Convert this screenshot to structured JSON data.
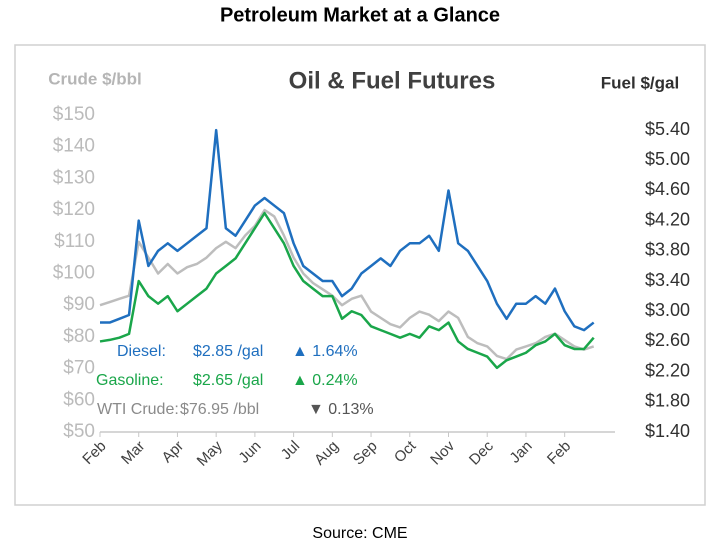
{
  "page_title": "Petroleum Market at a Glance",
  "source": "Source: CME",
  "chart_data": {
    "type": "line",
    "title": "Oil & Fuel Futures",
    "ylabel": "Crude $/bbl",
    "y2label": "Fuel $/gal",
    "x": [
      0,
      0.25,
      0.5,
      0.75,
      1,
      1.25,
      1.5,
      1.75,
      2,
      2.25,
      2.5,
      2.75,
      3,
      3.25,
      3.5,
      3.75,
      4,
      4.25,
      4.5,
      4.75,
      5,
      5.25,
      5.5,
      5.75,
      6,
      6.25,
      6.5,
      6.75,
      7,
      7.25,
      7.5,
      7.75,
      8,
      8.25,
      8.5,
      8.75,
      9,
      9.25,
      9.5,
      9.75,
      10,
      10.25,
      10.5,
      10.75,
      11,
      11.25,
      11.5,
      11.75,
      12,
      12.25,
      12.5,
      12.75
    ],
    "xlim": [
      0,
      13.3
    ],
    "xticks": [
      {
        "value": 0,
        "label": "Feb"
      },
      {
        "value": 1,
        "label": "Mar"
      },
      {
        "value": 2,
        "label": "Apr"
      },
      {
        "value": 3,
        "label": "May"
      },
      {
        "value": 4,
        "label": "Jun"
      },
      {
        "value": 5,
        "label": "Jul"
      },
      {
        "value": 6,
        "label": "Aug"
      },
      {
        "value": 7,
        "label": "Sep"
      },
      {
        "value": 8,
        "label": "Oct"
      },
      {
        "value": 9,
        "label": "Nov"
      },
      {
        "value": 10,
        "label": "Dec"
      },
      {
        "value": 11,
        "label": "Jan"
      },
      {
        "value": 12,
        "label": "Feb"
      }
    ],
    "ylim": [
      50,
      150
    ],
    "yticks": [
      {
        "value": 50,
        "label": "$50"
      },
      {
        "value": 60,
        "label": "$60"
      },
      {
        "value": 70,
        "label": "$70"
      },
      {
        "value": 80,
        "label": "$80"
      },
      {
        "value": 90,
        "label": "$90"
      },
      {
        "value": 100,
        "label": "$100"
      },
      {
        "value": 110,
        "label": "$110"
      },
      {
        "value": 120,
        "label": "$120"
      },
      {
        "value": 130,
        "label": "$130"
      },
      {
        "value": 140,
        "label": "$140"
      },
      {
        "value": 150,
        "label": "$150"
      }
    ],
    "y2lim": [
      1.4,
      5.6
    ],
    "y2ticks": [
      {
        "value": 1.4,
        "label": "$1.40"
      },
      {
        "value": 1.8,
        "label": "$1.80"
      },
      {
        "value": 2.2,
        "label": "$2.20"
      },
      {
        "value": 2.6,
        "label": "$2.60"
      },
      {
        "value": 3.0,
        "label": "$3.00"
      },
      {
        "value": 3.4,
        "label": "$3.40"
      },
      {
        "value": 3.8,
        "label": "$3.80"
      },
      {
        "value": 4.2,
        "label": "$4.20"
      },
      {
        "value": 4.6,
        "label": "$4.60"
      },
      {
        "value": 5.0,
        "label": "$5.00"
      },
      {
        "value": 5.4,
        "label": "$5.40"
      }
    ],
    "series": [
      {
        "name": "WTI Crude",
        "color": "#bdbdbd",
        "axis": "y",
        "values": [
          90,
          91,
          92,
          93,
          110,
          105,
          100,
          103,
          100,
          102,
          103,
          105,
          108,
          110,
          108,
          112,
          115,
          120,
          118,
          112,
          105,
          100,
          97,
          95,
          93,
          90,
          92,
          93,
          88,
          86,
          84,
          83,
          86,
          88,
          87,
          85,
          88,
          86,
          80,
          78,
          77,
          74,
          73,
          76,
          77,
          78,
          80,
          81,
          79,
          77,
          76,
          77
        ]
      },
      {
        "name": "Gasoline",
        "color": "#1aa64a",
        "axis": "y2",
        "values": [
          2.6,
          2.62,
          2.65,
          2.7,
          3.4,
          3.2,
          3.1,
          3.2,
          3.0,
          3.1,
          3.2,
          3.3,
          3.5,
          3.6,
          3.7,
          3.9,
          4.1,
          4.3,
          4.1,
          3.9,
          3.6,
          3.4,
          3.3,
          3.2,
          3.2,
          2.9,
          3.0,
          2.95,
          2.8,
          2.75,
          2.7,
          2.65,
          2.7,
          2.65,
          2.8,
          2.75,
          2.85,
          2.6,
          2.5,
          2.45,
          2.4,
          2.25,
          2.35,
          2.4,
          2.45,
          2.55,
          2.6,
          2.7,
          2.55,
          2.5,
          2.5,
          2.65
        ]
      },
      {
        "name": "Diesel",
        "color": "#1f6fbf",
        "axis": "y2",
        "values": [
          2.85,
          2.85,
          2.9,
          2.95,
          4.2,
          3.6,
          3.8,
          3.9,
          3.8,
          3.9,
          4.0,
          4.1,
          5.4,
          4.1,
          4.0,
          4.2,
          4.4,
          4.5,
          4.4,
          4.3,
          3.9,
          3.6,
          3.5,
          3.4,
          3.4,
          3.2,
          3.3,
          3.5,
          3.6,
          3.7,
          3.6,
          3.8,
          3.9,
          3.9,
          4.0,
          3.8,
          4.6,
          3.9,
          3.8,
          3.6,
          3.4,
          3.1,
          2.9,
          3.1,
          3.1,
          3.2,
          3.1,
          3.3,
          3.0,
          2.8,
          2.75,
          2.85
        ]
      }
    ],
    "annotations": [
      {
        "label": "Diesel:",
        "price": "$2.85 /gal",
        "change": "▲ 1.64%",
        "color": "#1f6fbf"
      },
      {
        "label": "Gasoline:",
        "price": "$2.65 /gal",
        "change": "▲ 0.24%",
        "color": "#1aa64a"
      },
      {
        "label": "WTI Crude:",
        "price": "$76.95 /bbl",
        "change": "▼ 0.13%",
        "color": "#8a8a8a"
      }
    ]
  }
}
